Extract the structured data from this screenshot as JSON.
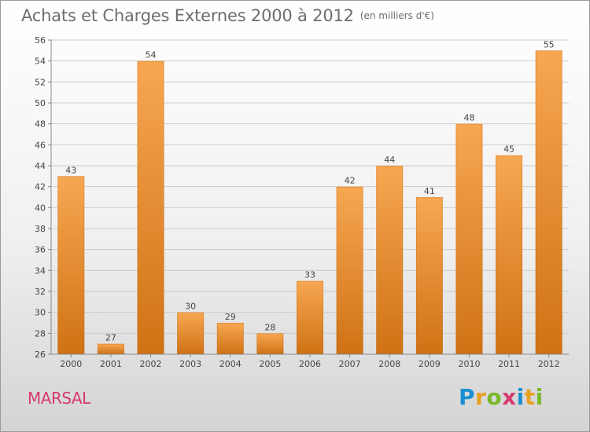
{
  "header": {
    "title": "Achats et Charges Externes 2000 à 2012",
    "unit": "(en milliers d'€)"
  },
  "footer": {
    "place": "MARSAL",
    "brand_letters": [
      {
        "char": "P",
        "color": "#1a8fd0"
      },
      {
        "char": "r",
        "color": "#e8a020"
      },
      {
        "char": "o",
        "color": "#7ab929"
      },
      {
        "char": "x",
        "color": "#d63b6e"
      },
      {
        "char": "i",
        "color": "#1a8fd0"
      },
      {
        "char": "t",
        "color": "#e8a020"
      },
      {
        "char": "i",
        "color": "#7ab929"
      }
    ]
  },
  "colors": {
    "bar_light": "#f7a752",
    "bar_dark": "#cf7215",
    "grid": "#cccccc",
    "axis": "#888888"
  },
  "chart_data": {
    "type": "bar",
    "categories": [
      "2000",
      "2001",
      "2002",
      "2003",
      "2004",
      "2005",
      "2006",
      "2007",
      "2008",
      "2009",
      "2010",
      "2011",
      "2012"
    ],
    "values": [
      43,
      27,
      54,
      30,
      29,
      28,
      33,
      42,
      44,
      41,
      48,
      45,
      55
    ],
    "ylim": [
      26,
      56
    ],
    "yticks": [
      26,
      28,
      30,
      32,
      34,
      36,
      38,
      40,
      42,
      44,
      46,
      48,
      50,
      52,
      54,
      56
    ],
    "grid": true,
    "legend": "none"
  }
}
